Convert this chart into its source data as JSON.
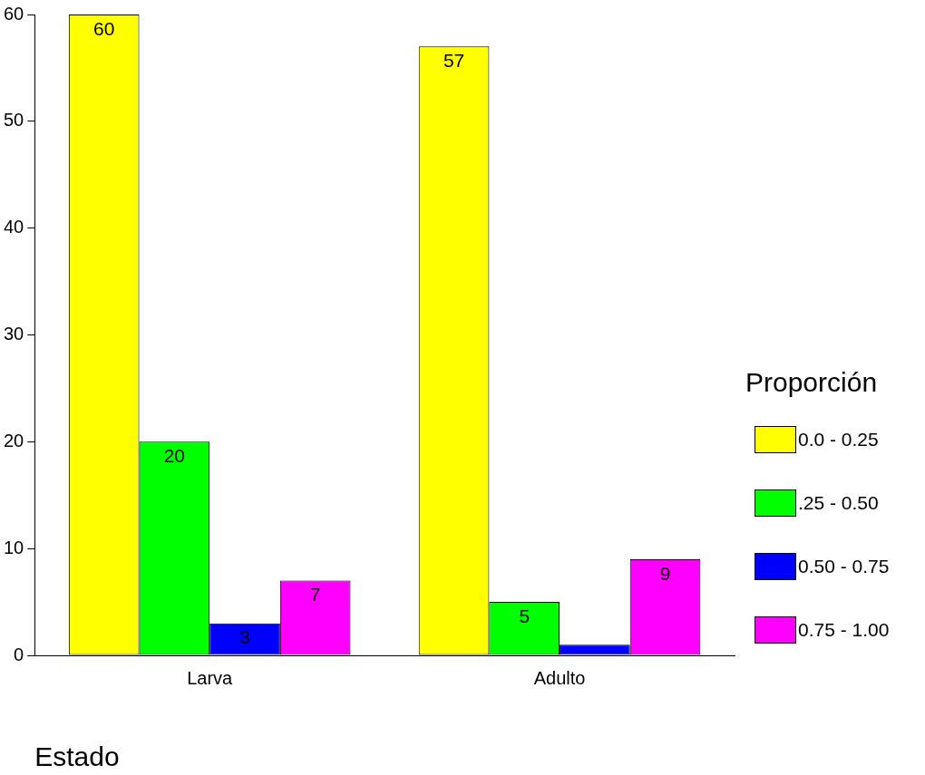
{
  "chart_data": {
    "type": "bar",
    "xlabel": "Estado",
    "legend_title": "Proporción",
    "categories": [
      "Larva",
      "Adulto"
    ],
    "series": [
      {
        "name": "0.0 - 0.25",
        "color": "#ffff00",
        "values": [
          60,
          57
        ],
        "value_labels": [
          "60",
          "57"
        ]
      },
      {
        "name": ".25 - 0.50",
        "color": "#00ff00",
        "values": [
          20,
          5
        ],
        "value_labels": [
          "20",
          "5"
        ]
      },
      {
        "name": "0.50 - 0.75",
        "color": "#0000ff",
        "values": [
          3,
          1
        ],
        "value_labels": [
          "3",
          null
        ]
      },
      {
        "name": "0.75 - 1.00",
        "color": "#ff00ff",
        "values": [
          7,
          9
        ],
        "value_labels": [
          "7",
          "9"
        ]
      }
    ],
    "ylim": [
      0,
      60
    ],
    "yticks": [
      0,
      10,
      20,
      30,
      40,
      50,
      60
    ],
    "legend": "right"
  }
}
